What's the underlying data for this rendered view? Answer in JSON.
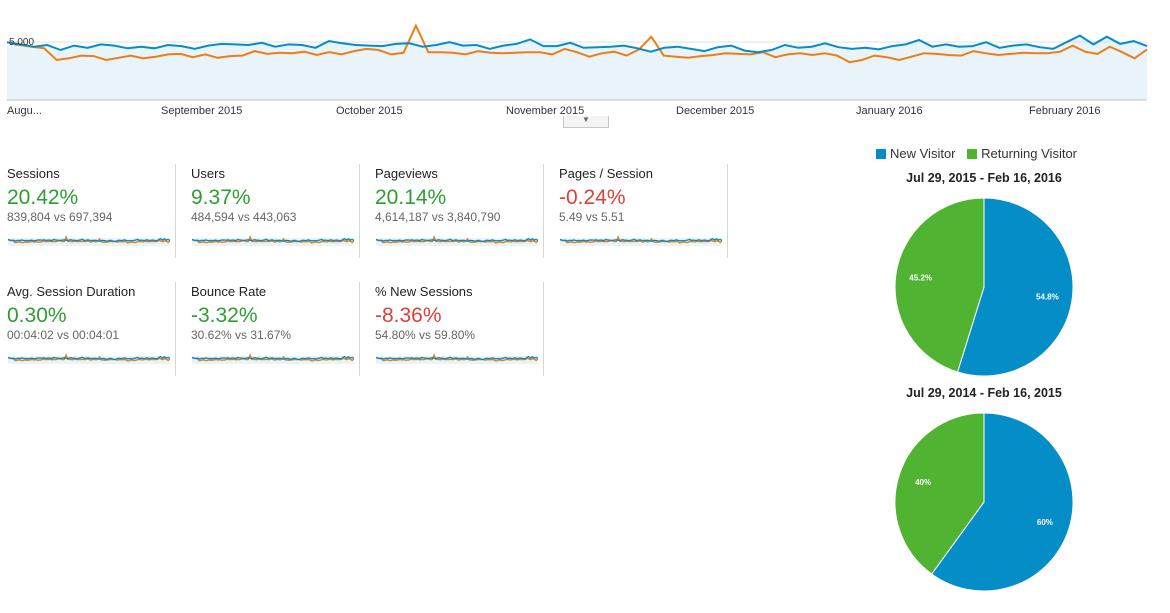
{
  "main_chart": {
    "y_tick_label": "5,000",
    "x_labels": [
      "Augu...",
      "September 2015",
      "October 2015",
      "November 2015",
      "December 2015",
      "January 2016",
      "February 2016"
    ],
    "colors": {
      "current": "#058dc7",
      "previous": "#ed7e17",
      "fill": "#e9f4fa"
    }
  },
  "chart_data": {
    "type": "line",
    "x_labels": [
      "Augu...",
      "September 2015",
      "October 2015",
      "November 2015",
      "December 2015",
      "January 2016",
      "February 2016"
    ],
    "y_ticks": [
      "5,000"
    ],
    "series": [
      {
        "values": [
          5200,
          5000,
          4800,
          4950,
          4500,
          4900,
          4700,
          5000,
          4900,
          4650,
          4800,
          4650,
          4950,
          4850,
          4600,
          4900,
          5050,
          5000,
          4950,
          5150,
          4800,
          5000,
          4950,
          4700,
          5300,
          5100,
          4950,
          4900,
          4850,
          5050,
          5100,
          4800,
          4950,
          5200,
          4900,
          4950,
          4600,
          4900,
          5050,
          5450,
          4850,
          4850,
          5150,
          4700,
          4750,
          4800,
          4900,
          4650,
          4350,
          4700,
          4800,
          4600,
          4400,
          4750,
          4900,
          4450,
          4300,
          4500,
          4950,
          4700,
          4800,
          5100,
          4750,
          4600,
          4700,
          4550,
          4850,
          5000,
          5400,
          4800,
          5000,
          4800,
          4850,
          5200,
          4700,
          4900,
          5000,
          4750,
          4600,
          5200,
          5800,
          5000,
          5700,
          5050,
          5300,
          4850
        ]
      },
      {
        "values": [
          5200,
          4950,
          4800,
          4650,
          3600,
          3750,
          4000,
          3950,
          3600,
          3800,
          4000,
          3750,
          3900,
          4100,
          4150,
          3850,
          4100,
          3800,
          3950,
          4000,
          4400,
          4150,
          4250,
          4200,
          4350,
          4050,
          4300,
          4100,
          4400,
          4600,
          4500,
          4100,
          4250,
          6700,
          4300,
          4300,
          4250,
          4100,
          4400,
          4250,
          4200,
          4250,
          4300,
          4300,
          4100,
          4600,
          4300,
          3900,
          4200,
          4350,
          4000,
          4550,
          5700,
          4000,
          3900,
          3800,
          3950,
          4050,
          4200,
          4150,
          4100,
          4300,
          3850,
          4100,
          4200,
          4050,
          4200,
          4000,
          3400,
          3600,
          4000,
          3850,
          3600,
          3900,
          4200,
          4150,
          4050,
          4000,
          4400,
          4200,
          4050,
          4150,
          4250,
          4200,
          4200,
          4350,
          4900,
          4350,
          4150,
          4800,
          4300,
          3750,
          4550
        ]
      }
    ]
  },
  "metrics": [
    {
      "label": "Sessions",
      "change": "20.42%",
      "trend": "positive",
      "comparison": "839,804 vs 697,394"
    },
    {
      "label": "Users",
      "change": "9.37%",
      "trend": "positive",
      "comparison": "484,594 vs 443,063"
    },
    {
      "label": "Pageviews",
      "change": "20.14%",
      "trend": "positive",
      "comparison": "4,614,187 vs 3,840,790"
    },
    {
      "label": "Pages / Session",
      "change": "-0.24%",
      "trend": "negative",
      "comparison": "5.49 vs 5.51"
    },
    {
      "label": "Avg. Session Duration",
      "change": "0.30%",
      "trend": "positive",
      "comparison": "00:04:02 vs 00:04:01"
    },
    {
      "label": "Bounce Rate",
      "change": "-3.32%",
      "trend": "positive",
      "comparison": "30.62% vs 31.67%"
    },
    {
      "label": "% New Sessions",
      "change": "-8.36%",
      "trend": "negative",
      "comparison": "54.80% vs 59.80%"
    }
  ],
  "legend": {
    "items": [
      {
        "label": "New Visitor",
        "color": "#058dc7"
      },
      {
        "label": "Returning Visitor",
        "color": "#50b432"
      }
    ]
  },
  "pies": [
    {
      "title": "Jul 29, 2015 - Feb 16, 2016",
      "slices": [
        {
          "name": "New Visitor",
          "value": 54.8,
          "label": "54.8%"
        },
        {
          "name": "Returning Visitor",
          "value": 45.2,
          "label": "45.2%"
        }
      ]
    },
    {
      "title": "Jul 29, 2014 - Feb 16, 2015",
      "slices": [
        {
          "name": "New Visitor",
          "value": 60,
          "label": "60%"
        },
        {
          "name": "Returning Visitor",
          "value": 40,
          "label": "40%"
        }
      ]
    }
  ]
}
